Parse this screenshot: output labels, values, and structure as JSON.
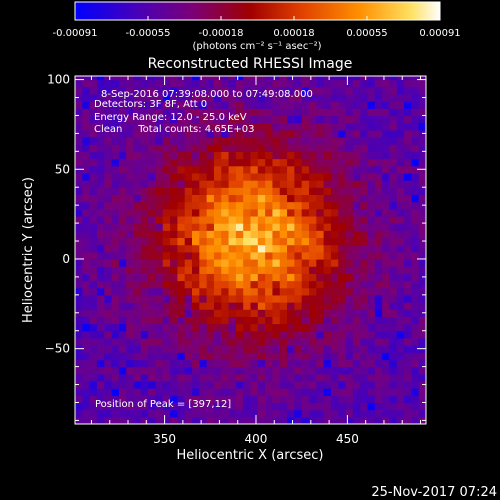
{
  "chart_data": {
    "type": "heatmap",
    "title": "Reconstructed RHESSI Image",
    "colorbar": {
      "ticks": [
        "-0.00091",
        "-0.00055",
        "-0.00018",
        "0.00018",
        "0.00055",
        "0.00091"
      ],
      "range": [
        -0.00091,
        0.00091
      ],
      "units": "(photons cm⁻² s⁻¹ asec⁻²)",
      "colormap": [
        "#0000ff",
        "#4b00b4",
        "#7a0078",
        "#a00000",
        "#e04000",
        "#ff9000",
        "#ffe060",
        "#ffffff"
      ]
    },
    "xlabel": "Heliocentric X (arcsec)",
    "ylabel": "Heliocentric Y (arcsec)",
    "xlim": [
      301,
      493
    ],
    "ylim": [
      -92,
      102
    ],
    "xticks": [
      "350",
      "400",
      "450"
    ],
    "yticks": [
      "100",
      "50",
      "0",
      "−50"
    ],
    "annotations": [
      "8-Sep-2016 07:39:08.000 to 07:49:08.000",
      "Detectors: 3F 8F, Att 0",
      "Energy Range: 12.0 - 25.0 keV",
      "Clean     Total counts: 4.65E+03"
    ],
    "peak_label": "Position of Peak = [397,12]",
    "peak": [
      397,
      12
    ],
    "image_center": [
      397,
      12
    ],
    "source_radius_arcsec": 58
  },
  "footer": {
    "timestamp": "25-Nov-2017 07:24"
  }
}
